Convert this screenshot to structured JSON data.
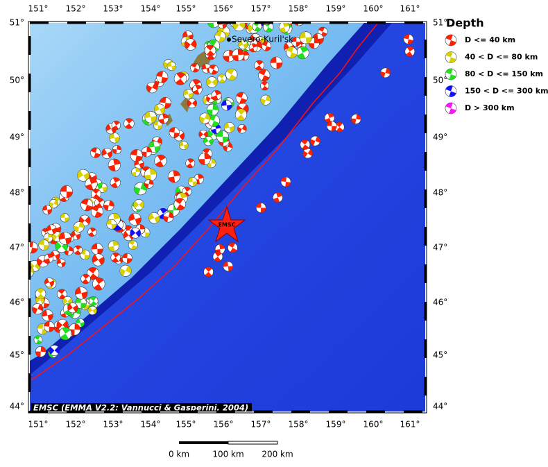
{
  "map": {
    "lon_labels": [
      "151°",
      "152°",
      "153°",
      "154°",
      "155°",
      "156°",
      "157°",
      "158°",
      "159°",
      "160°",
      "161°"
    ],
    "lat_labels": [
      "51°",
      "50°",
      "49°",
      "48°",
      "47°",
      "46°",
      "45°",
      "44°"
    ],
    "city": "Severo-Kuril'sk",
    "epicenter_label": "EMSC",
    "credit": "EMSC (EMMA V2.2; Vannucci & Gasperini, 2004)"
  },
  "legend": {
    "title": "Depth",
    "items": [
      {
        "label": "D <= 40 km",
        "color": "#ff2000"
      },
      {
        "label": "40 < D <= 80 km",
        "color": "#d8d000"
      },
      {
        "label": "80 < D <= 150 km",
        "color": "#20e020"
      },
      {
        "label": "150 < D <= 300 km",
        "color": "#1010ff"
      },
      {
        "label": "D > 300 km",
        "color": "#ff10ff"
      }
    ]
  },
  "scale_bar": {
    "labels": [
      "0 km",
      "100 km",
      "200 km"
    ]
  }
}
